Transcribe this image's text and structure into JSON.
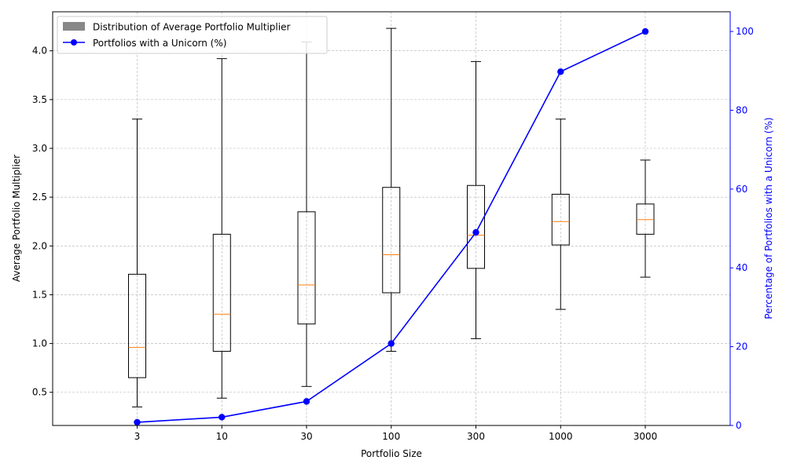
{
  "chart_data": {
    "type": "box+line",
    "categories": [
      "3",
      "10",
      "30",
      "100",
      "300",
      "1000",
      "3000"
    ],
    "xlabel": "Portfolio Size",
    "ylabel_left": "Average Portfolio Multiplier",
    "ylabel_right": "Percentage of Portfolios with a Unicorn (%)",
    "ylim_left": [
      0.16,
      4.4
    ],
    "yticks_left": [
      "0.5",
      "1.0",
      "1.5",
      "2.0",
      "2.5",
      "3.0",
      "3.5",
      "4.0"
    ],
    "ylim_right": [
      0,
      105
    ],
    "yticks_right": [
      "0",
      "20",
      "40",
      "60",
      "80",
      "100"
    ],
    "grid": true,
    "legend_position": "top-left",
    "legend": {
      "box_label": "Distribution of Average Portfolio Multiplier",
      "line_label": "Portfolios with a Unicorn (%)"
    },
    "box_series": [
      {
        "whisker_low": 0.35,
        "q1": 0.65,
        "median": 0.96,
        "q3": 1.71,
        "whisker_high": 3.3
      },
      {
        "whisker_low": 0.44,
        "q1": 0.92,
        "median": 1.3,
        "q3": 2.12,
        "whisker_high": 3.92
      },
      {
        "whisker_low": 0.56,
        "q1": 1.2,
        "median": 1.6,
        "q3": 2.35,
        "whisker_high": 4.09
      },
      {
        "whisker_low": 0.92,
        "q1": 1.52,
        "median": 1.91,
        "q3": 2.6,
        "whisker_high": 4.23
      },
      {
        "whisker_low": 1.05,
        "q1": 1.77,
        "median": 2.11,
        "q3": 2.62,
        "whisker_high": 3.89
      },
      {
        "whisker_low": 1.35,
        "q1": 2.01,
        "median": 2.25,
        "q3": 2.53,
        "whisker_high": 3.3
      },
      {
        "whisker_low": 1.68,
        "q1": 2.12,
        "median": 2.27,
        "q3": 2.43,
        "whisker_high": 2.88
      }
    ],
    "line_series": {
      "values": [
        0.8,
        2.1,
        6.1,
        20.8,
        49.0,
        89.8,
        100.0
      ]
    },
    "colors": {
      "box": "#000000",
      "median": "#ff7f0e",
      "line": "#0000ff",
      "legend_box_patch": "#888888",
      "grid": "#b0b0b0"
    }
  }
}
